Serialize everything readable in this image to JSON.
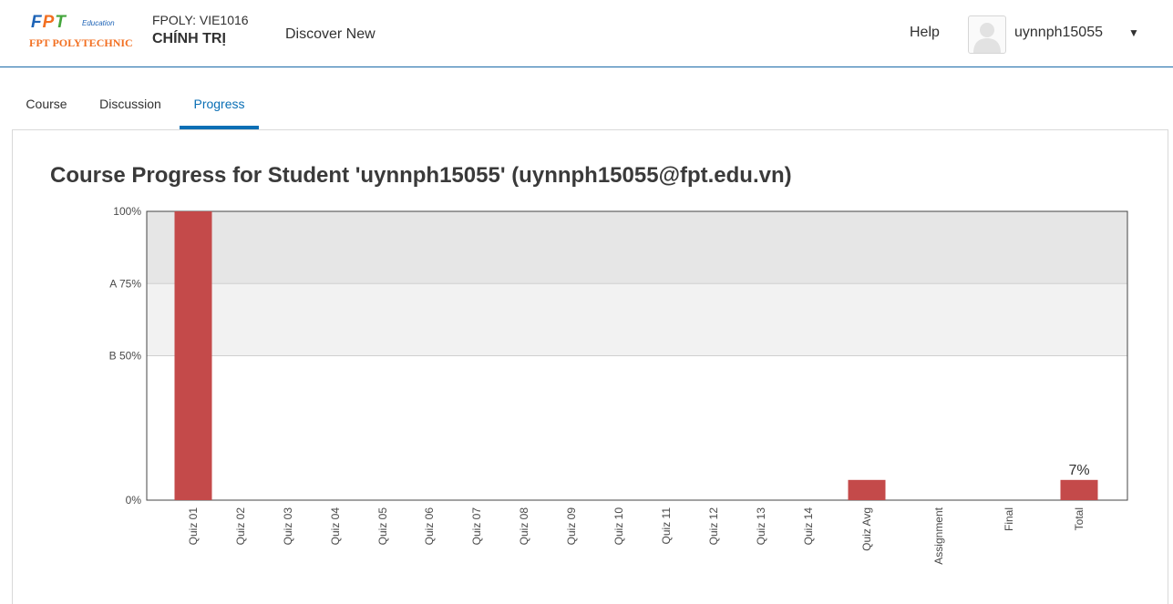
{
  "header": {
    "logo": {
      "mark": [
        "F",
        "P",
        "T"
      ],
      "edu": "Education",
      "name": "FPT POLYTECHNIC"
    },
    "course_code": "FPOLY: VIE1016",
    "course_name": "CHÍNH TRỊ",
    "discover": "Discover New",
    "help": "Help",
    "username": "uynnph15055",
    "logo_colors": {
      "blue": "#1d63b6",
      "orange": "#f26f21",
      "green": "#45a63d"
    }
  },
  "tabs": [
    {
      "label": "Course",
      "active": false
    },
    {
      "label": "Discussion",
      "active": false
    },
    {
      "label": "Progress",
      "active": true
    }
  ],
  "page": {
    "title": "Course Progress for Student 'uynnph15055' (uynnph15055@fpt.edu.vn)"
  },
  "chart_data": {
    "type": "bar",
    "categories": [
      "Quiz 01",
      "Quiz 02",
      "Quiz 03",
      "Quiz 04",
      "Quiz 05",
      "Quiz 06",
      "Quiz 07",
      "Quiz 08",
      "Quiz 09",
      "Quiz 10",
      "Quiz 11",
      "Quiz 12",
      "Quiz 13",
      "Quiz 14",
      "Quiz Avg",
      "Assignment",
      "Final",
      "Total"
    ],
    "values": [
      100,
      0,
      0,
      0,
      0,
      0,
      0,
      0,
      0,
      0,
      0,
      0,
      0,
      0,
      7,
      0,
      0,
      7
    ],
    "ylim": [
      0,
      100
    ],
    "yticks": [
      {
        "value": 100,
        "label": "100%"
      },
      {
        "value": 75,
        "label": "A 75%"
      },
      {
        "value": 50,
        "label": "B 50%"
      },
      {
        "value": 0,
        "label": "0%"
      }
    ],
    "grade_bands": [
      {
        "from": 75,
        "to": 100,
        "color": "#e6e6e6"
      },
      {
        "from": 50,
        "to": 75,
        "color": "#f2f2f2"
      }
    ],
    "data_labels": [
      {
        "category": "Total",
        "text": "7%"
      }
    ],
    "bar_color": "#c44a4a"
  }
}
